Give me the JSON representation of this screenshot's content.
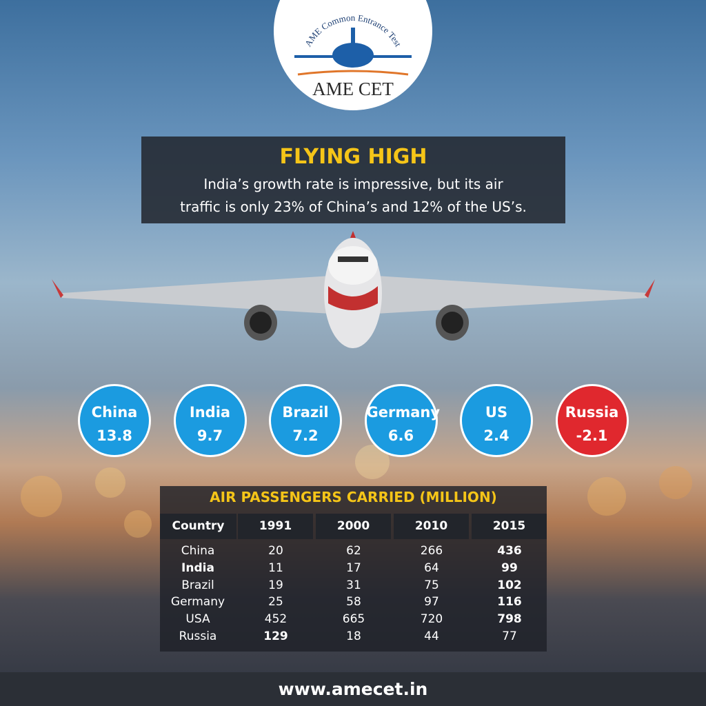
{
  "logo": {
    "arc_text": "AME Common Entrance Test",
    "name": "AME CET"
  },
  "header": {
    "title": "FLYING HIGH",
    "subtitle": [
      "India’s growth rate is impressive, but its air",
      "traffic is only 23% of China’s and 12% of the US’s."
    ]
  },
  "growth": [
    {
      "country": "China",
      "value": 13.8,
      "color": "#1b9be0"
    },
    {
      "country": "India",
      "value": 9.7,
      "color": "#1b9be0"
    },
    {
      "country": "Brazil",
      "value": 7.2,
      "color": "#1b9be0"
    },
    {
      "country": "Germany",
      "value": 6.6,
      "color": "#1b9be0"
    },
    {
      "country": "US",
      "value": 2.4,
      "color": "#1b9be0"
    },
    {
      "country": "Russia",
      "value": -2.1,
      "color": "#e0282e"
    }
  ],
  "table": {
    "title": "AIR PASSENGERS CARRIED (MILLION)",
    "columns": [
      "Country",
      "1991",
      "2000",
      "2010",
      "2015"
    ],
    "rows": [
      [
        "China",
        20,
        62,
        266,
        436
      ],
      [
        "India",
        11,
        17,
        64,
        99
      ],
      [
        "Brazil",
        19,
        31,
        75,
        102
      ],
      [
        "Germany",
        25,
        58,
        97,
        116
      ],
      [
        "USA",
        452,
        665,
        720,
        798
      ],
      [
        "Russia",
        129,
        18,
        44,
        77
      ]
    ]
  },
  "footer": {
    "url": "www.amecet.in"
  }
}
